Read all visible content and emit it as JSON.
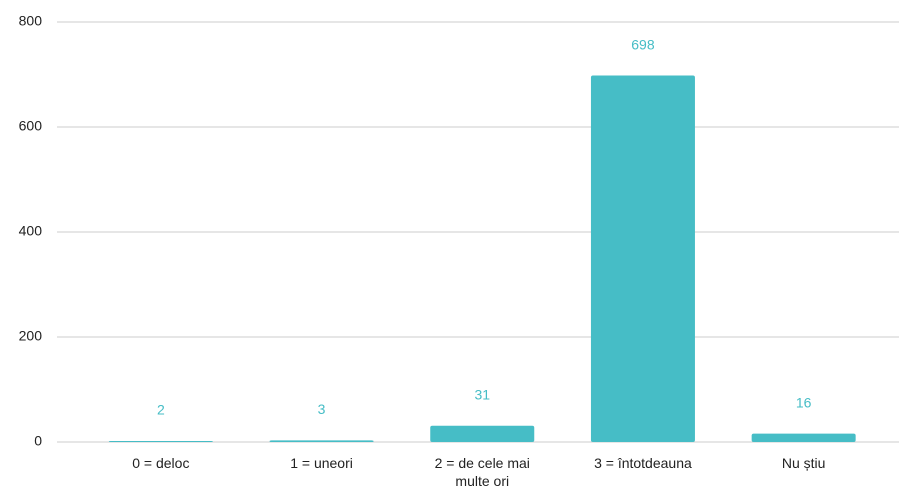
{
  "chart_data": {
    "type": "bar",
    "categories": [
      "0 = deloc",
      "1 = uneori",
      "2 = de cele mai multe ori",
      "3 = întotdeauna",
      "Nu știu"
    ],
    "values": [
      2,
      3,
      31,
      698,
      16
    ],
    "color": "#46bdc6",
    "ylim": [
      0,
      800
    ],
    "yticks": [
      0,
      200,
      400,
      600,
      800
    ],
    "grid": true
  }
}
